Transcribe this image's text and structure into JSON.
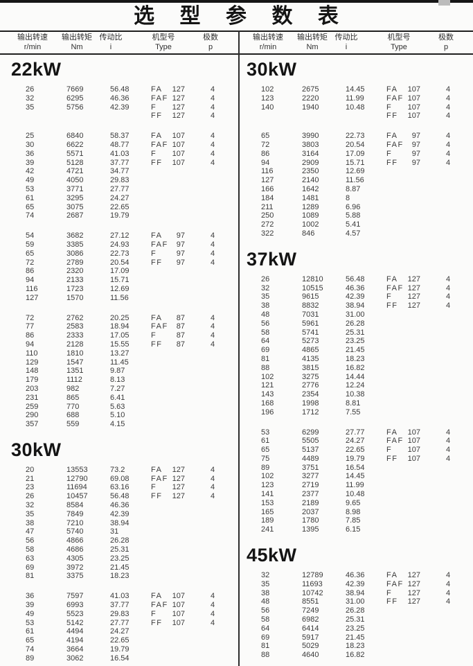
{
  "title": "选 型 参 数 表",
  "header": {
    "speed_zh": "输出转速",
    "speed_unit": "r/min",
    "torque_zh": "输出转矩",
    "torque_unit": "Nm",
    "ratio_zh": "传动比",
    "ratio_unit": "i",
    "type_zh": "机型号",
    "type_unit": "Type",
    "poles_zh": "极数",
    "poles_unit": "p"
  },
  "left_column": {
    "sections": [
      {
        "power": "22kW",
        "groups": [
          [
            [
              "26",
              "7669",
              "56.48",
              "FA",
              "127",
              "4"
            ],
            [
              "32",
              "6295",
              "46.36",
              "FAF",
              "127",
              "4"
            ],
            [
              "35",
              "5756",
              "42.39",
              "F",
              "127",
              "4"
            ],
            [
              "",
              "",
              "",
              "FF",
              "127",
              "4"
            ]
          ],
          [
            [
              "25",
              "6840",
              "58.37",
              "FA",
              "107",
              "4"
            ],
            [
              "30",
              "6622",
              "48.77",
              "FAF",
              "107",
              "4"
            ],
            [
              "36",
              "5571",
              "41.03",
              "F",
              "107",
              "4"
            ],
            [
              "39",
              "5128",
              "37.77",
              "FF",
              "107",
              "4"
            ],
            [
              "42",
              "4721",
              "34.77"
            ],
            [
              "49",
              "4050",
              "29.83"
            ],
            [
              "53",
              "3771",
              "27.77"
            ],
            [
              "61",
              "3295",
              "24.27"
            ],
            [
              "65",
              "3075",
              "22.65"
            ],
            [
              "74",
              "2687",
              "19.79"
            ]
          ],
          [
            [
              "54",
              "3682",
              "27.12",
              "FA",
              "97",
              "4"
            ],
            [
              "59",
              "3385",
              "24.93",
              "FAF",
              "97",
              "4"
            ],
            [
              "65",
              "3086",
              "22.73",
              "F",
              "97",
              "4"
            ],
            [
              "72",
              "2789",
              "20.54",
              "FF",
              "97",
              "4"
            ],
            [
              "86",
              "2320",
              "17.09"
            ],
            [
              "94",
              "2133",
              "15.71"
            ],
            [
              "116",
              "1723",
              "12.69"
            ],
            [
              "127",
              "1570",
              "11.56"
            ]
          ],
          [
            [
              "72",
              "2762",
              "20.25",
              "FA",
              "87",
              "4"
            ],
            [
              "77",
              "2583",
              "18.94",
              "FAF",
              "87",
              "4"
            ],
            [
              "86",
              "2333",
              "17.05",
              "F",
              "87",
              "4"
            ],
            [
              "94",
              "2128",
              "15.55",
              "FF",
              "87",
              "4"
            ],
            [
              "110",
              "1810",
              "13.27"
            ],
            [
              "129",
              "1547",
              "11.45"
            ],
            [
              "148",
              "1351",
              "9.87"
            ],
            [
              "179",
              "1112",
              "8.13"
            ],
            [
              "203",
              "982",
              "7.27"
            ],
            [
              "231",
              "865",
              "6.41"
            ],
            [
              "259",
              "770",
              "5.63"
            ],
            [
              "290",
              "688",
              "5.10"
            ],
            [
              "357",
              "559",
              "4.15"
            ]
          ]
        ]
      },
      {
        "power": "30kW",
        "groups": [
          [
            [
              "20",
              "13553",
              "73.2",
              "FA",
              "127",
              "4"
            ],
            [
              "21",
              "12790",
              "69.08",
              "FAF",
              "127",
              "4"
            ],
            [
              "23",
              "11694",
              "63.16",
              "F",
              "127",
              "4"
            ],
            [
              "26",
              "10457",
              "56.48",
              "FF",
              "127",
              "4"
            ],
            [
              "32",
              "8584",
              "46.36"
            ],
            [
              "35",
              "7849",
              "42.39"
            ],
            [
              "38",
              "7210",
              "38.94"
            ],
            [
              "47",
              "5740",
              "31"
            ],
            [
              "56",
              "4866",
              "26.28"
            ],
            [
              "58",
              "4686",
              "25.31"
            ],
            [
              "63",
              "4305",
              "23.25"
            ],
            [
              "69",
              "3972",
              "21.45"
            ],
            [
              "81",
              "3375",
              "18.23"
            ]
          ],
          [
            [
              "36",
              "7597",
              "41.03",
              "FA",
              "107",
              "4"
            ],
            [
              "39",
              "6993",
              "37.77",
              "FAF",
              "107",
              "4"
            ],
            [
              "49",
              "5523",
              "29.83",
              "F",
              "107",
              "4"
            ],
            [
              "53",
              "5142",
              "27.77",
              "FF",
              "107",
              "4"
            ],
            [
              "61",
              "4494",
              "24.27"
            ],
            [
              "65",
              "4194",
              "22.65"
            ],
            [
              "74",
              "3664",
              "19.79"
            ],
            [
              "89",
              "3062",
              "16.54"
            ]
          ]
        ]
      }
    ]
  },
  "right_column": {
    "sections": [
      {
        "power": "30kW",
        "groups": [
          [
            [
              "102",
              "2675",
              "14.45",
              "FA",
              "107",
              "4"
            ],
            [
              "123",
              "2220",
              "11.99",
              "FAF",
              "107",
              "4"
            ],
            [
              "140",
              "1940",
              "10.48",
              "F",
              "107",
              "4"
            ],
            [
              "",
              "",
              "",
              "FF",
              "107",
              "4"
            ]
          ],
          [
            [
              "65",
              "3990",
              "22.73",
              "FA",
              "97",
              "4"
            ],
            [
              "72",
              "3803",
              "20.54",
              "FAF",
              "97",
              "4"
            ],
            [
              "86",
              "3164",
              "17.09",
              "F",
              "97",
              "4"
            ],
            [
              "94",
              "2909",
              "15.71",
              "FF",
              "97",
              "4"
            ],
            [
              "116",
              "2350",
              "12.69"
            ],
            [
              "127",
              "2140",
              "11.56"
            ],
            [
              "166",
              "1642",
              "8.87"
            ],
            [
              "184",
              "1481",
              "8"
            ],
            [
              "211",
              "1289",
              "6.96"
            ],
            [
              "250",
              "1089",
              "5.88"
            ],
            [
              "272",
              "1002",
              "5.41"
            ],
            [
              "322",
              "846",
              "4.57"
            ]
          ]
        ]
      },
      {
        "power": "37kW",
        "groups": [
          [
            [
              "26",
              "12810",
              "56.48",
              "FA",
              "127",
              "4"
            ],
            [
              "32",
              "10515",
              "46.36",
              "FAF",
              "127",
              "4"
            ],
            [
              "35",
              "9615",
              "42.39",
              "F",
              "127",
              "4"
            ],
            [
              "38",
              "8832",
              "38.94",
              "FF",
              "127",
              "4"
            ],
            [
              "48",
              "7031",
              "31.00"
            ],
            [
              "56",
              "5961",
              "26.28"
            ],
            [
              "58",
              "5741",
              "25.31"
            ],
            [
              "64",
              "5273",
              "23.25"
            ],
            [
              "69",
              "4865",
              "21.45"
            ],
            [
              "81",
              "4135",
              "18.23"
            ],
            [
              "88",
              "3815",
              "16.82"
            ],
            [
              "102",
              "3275",
              "14.44"
            ],
            [
              "121",
              "2776",
              "12.24"
            ],
            [
              "143",
              "2354",
              "10.38"
            ],
            [
              "168",
              "1998",
              "8.81"
            ],
            [
              "196",
              "1712",
              "7.55"
            ]
          ],
          [
            [
              "53",
              "6299",
              "27.77",
              "FA",
              "107",
              "4"
            ],
            [
              "61",
              "5505",
              "24.27",
              "FAF",
              "107",
              "4"
            ],
            [
              "65",
              "5137",
              "22.65",
              "F",
              "107",
              "4"
            ],
            [
              "75",
              "4489",
              "19.79",
              "FF",
              "107",
              "4"
            ],
            [
              "89",
              "3751",
              "16.54"
            ],
            [
              "102",
              "3277",
              "14.45"
            ],
            [
              "123",
              "2719",
              "11.99"
            ],
            [
              "141",
              "2377",
              "10.48"
            ],
            [
              "153",
              "2189",
              "9.65"
            ],
            [
              "165",
              "2037",
              "8.98"
            ],
            [
              "189",
              "1780",
              "7.85"
            ],
            [
              "241",
              "1395",
              "6.15"
            ]
          ]
        ]
      },
      {
        "power": "45kW",
        "groups": [
          [
            [
              "32",
              "12789",
              "46.36",
              "FA",
              "127",
              "4"
            ],
            [
              "35",
              "11693",
              "42.39",
              "FAF",
              "127",
              "4"
            ],
            [
              "38",
              "10742",
              "38.94",
              "F",
              "127",
              "4"
            ],
            [
              "48",
              "8551",
              "31.00",
              "FF",
              "127",
              "4"
            ],
            [
              "56",
              "7249",
              "26.28"
            ],
            [
              "58",
              "6982",
              "25.31"
            ],
            [
              "64",
              "6414",
              "23.25"
            ],
            [
              "69",
              "5917",
              "21.45"
            ],
            [
              "81",
              "5029",
              "18.23"
            ],
            [
              "88",
              "4640",
              "16.82"
            ]
          ]
        ]
      }
    ]
  }
}
